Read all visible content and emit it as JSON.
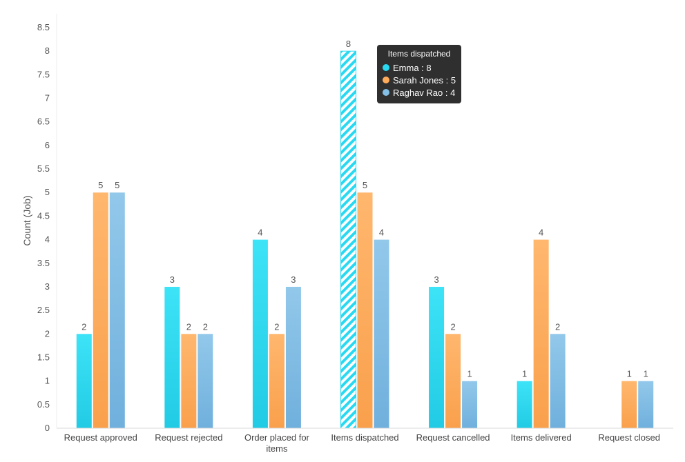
{
  "chart_data": {
    "type": "bar",
    "categories": [
      "Request approved",
      "Request rejected",
      "Order placed for items",
      "Items dispatched",
      "Request cancelled",
      "Items delivered",
      "Request closed"
    ],
    "series": [
      {
        "name": "Emma",
        "color": "#29D9F1",
        "values": [
          2,
          3,
          4,
          8,
          3,
          1,
          null
        ]
      },
      {
        "name": "Sarah Jones",
        "color": "#FFAB5C",
        "values": [
          5,
          2,
          2,
          5,
          2,
          4,
          1
        ]
      },
      {
        "name": "Raghav Rao",
        "color": "#84BFE6",
        "values": [
          5,
          2,
          3,
          4,
          1,
          2,
          1
        ]
      }
    ],
    "ylabel": "Count (Job)",
    "xlabel": "",
    "ylim": [
      0,
      8.5
    ],
    "yticks": [
      "0",
      "0.5",
      "1",
      "1.5",
      "2",
      "2.5",
      "3",
      "3.5",
      "4",
      "4.5",
      "5",
      "5.5",
      "6",
      "6.5",
      "7",
      "7.5",
      "8",
      "8.5"
    ],
    "data_labels": true,
    "highlighted": {
      "category": "Items dispatched",
      "series": "Emma"
    }
  },
  "tooltip": {
    "title": "Items dispatched",
    "rows": [
      {
        "text": "Emma : 8",
        "color": "#29D9F1"
      },
      {
        "text": "Sarah Jones : 5",
        "color": "#FFAB5C"
      },
      {
        "text": "Raghav Rao : 4",
        "color": "#84BFE6"
      }
    ]
  }
}
